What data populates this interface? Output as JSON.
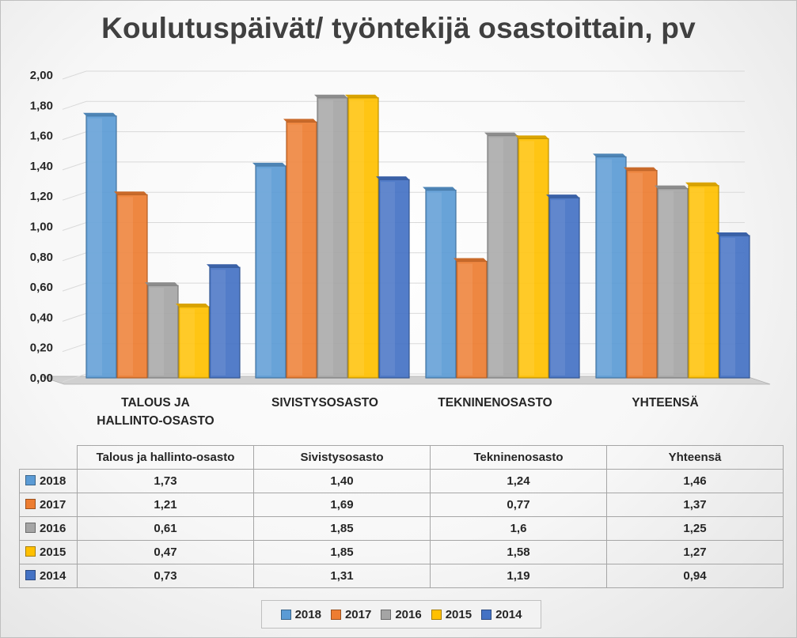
{
  "chart_data": {
    "type": "bar",
    "title": "Koulutuspäivät/ työntekijä osastoittain, pv",
    "categories": [
      "TALOUS JA HALLINTO-OSASTO",
      "SIVISTYSOSASTO",
      "TEKNINENOSASTO",
      "YHTEENSÄ"
    ],
    "table_headers": [
      "Talous ja hallinto-osasto",
      "Sivistysosasto",
      "Tekninenosasto",
      "Yhteensä"
    ],
    "series": [
      {
        "name": "2018",
        "color": "#5b9bd5",
        "values": [
          1.73,
          1.4,
          1.24,
          1.46
        ],
        "labels": [
          "1,73",
          "1,40",
          "1,24",
          "1,46"
        ]
      },
      {
        "name": "2017",
        "color": "#ed7d31",
        "values": [
          1.21,
          1.69,
          0.77,
          1.37
        ],
        "labels": [
          "1,21",
          "1,69",
          "0,77",
          "1,37"
        ]
      },
      {
        "name": "2016",
        "color": "#a5a5a5",
        "values": [
          0.61,
          1.85,
          1.6,
          1.25
        ],
        "labels": [
          "0,61",
          "1,85",
          "1,6",
          "1,25"
        ]
      },
      {
        "name": "2015",
        "color": "#ffc000",
        "values": [
          0.47,
          1.85,
          1.58,
          1.27
        ],
        "labels": [
          "0,47",
          "1,85",
          "1,58",
          "1,27"
        ]
      },
      {
        "name": "2014",
        "color": "#4472c4",
        "values": [
          0.73,
          1.31,
          1.19,
          0.94
        ],
        "labels": [
          "0,73",
          "1,31",
          "1,19",
          "0,94"
        ]
      }
    ],
    "y_ticks": [
      "0,00",
      "0,20",
      "0,40",
      "0,60",
      "0,80",
      "1,00",
      "1,20",
      "1,40",
      "1,60",
      "1,80",
      "2,00"
    ],
    "ylim": [
      0,
      2
    ],
    "grid": true,
    "legend_position": "bottom",
    "style": "3d-clustered-column-with-data-table"
  }
}
